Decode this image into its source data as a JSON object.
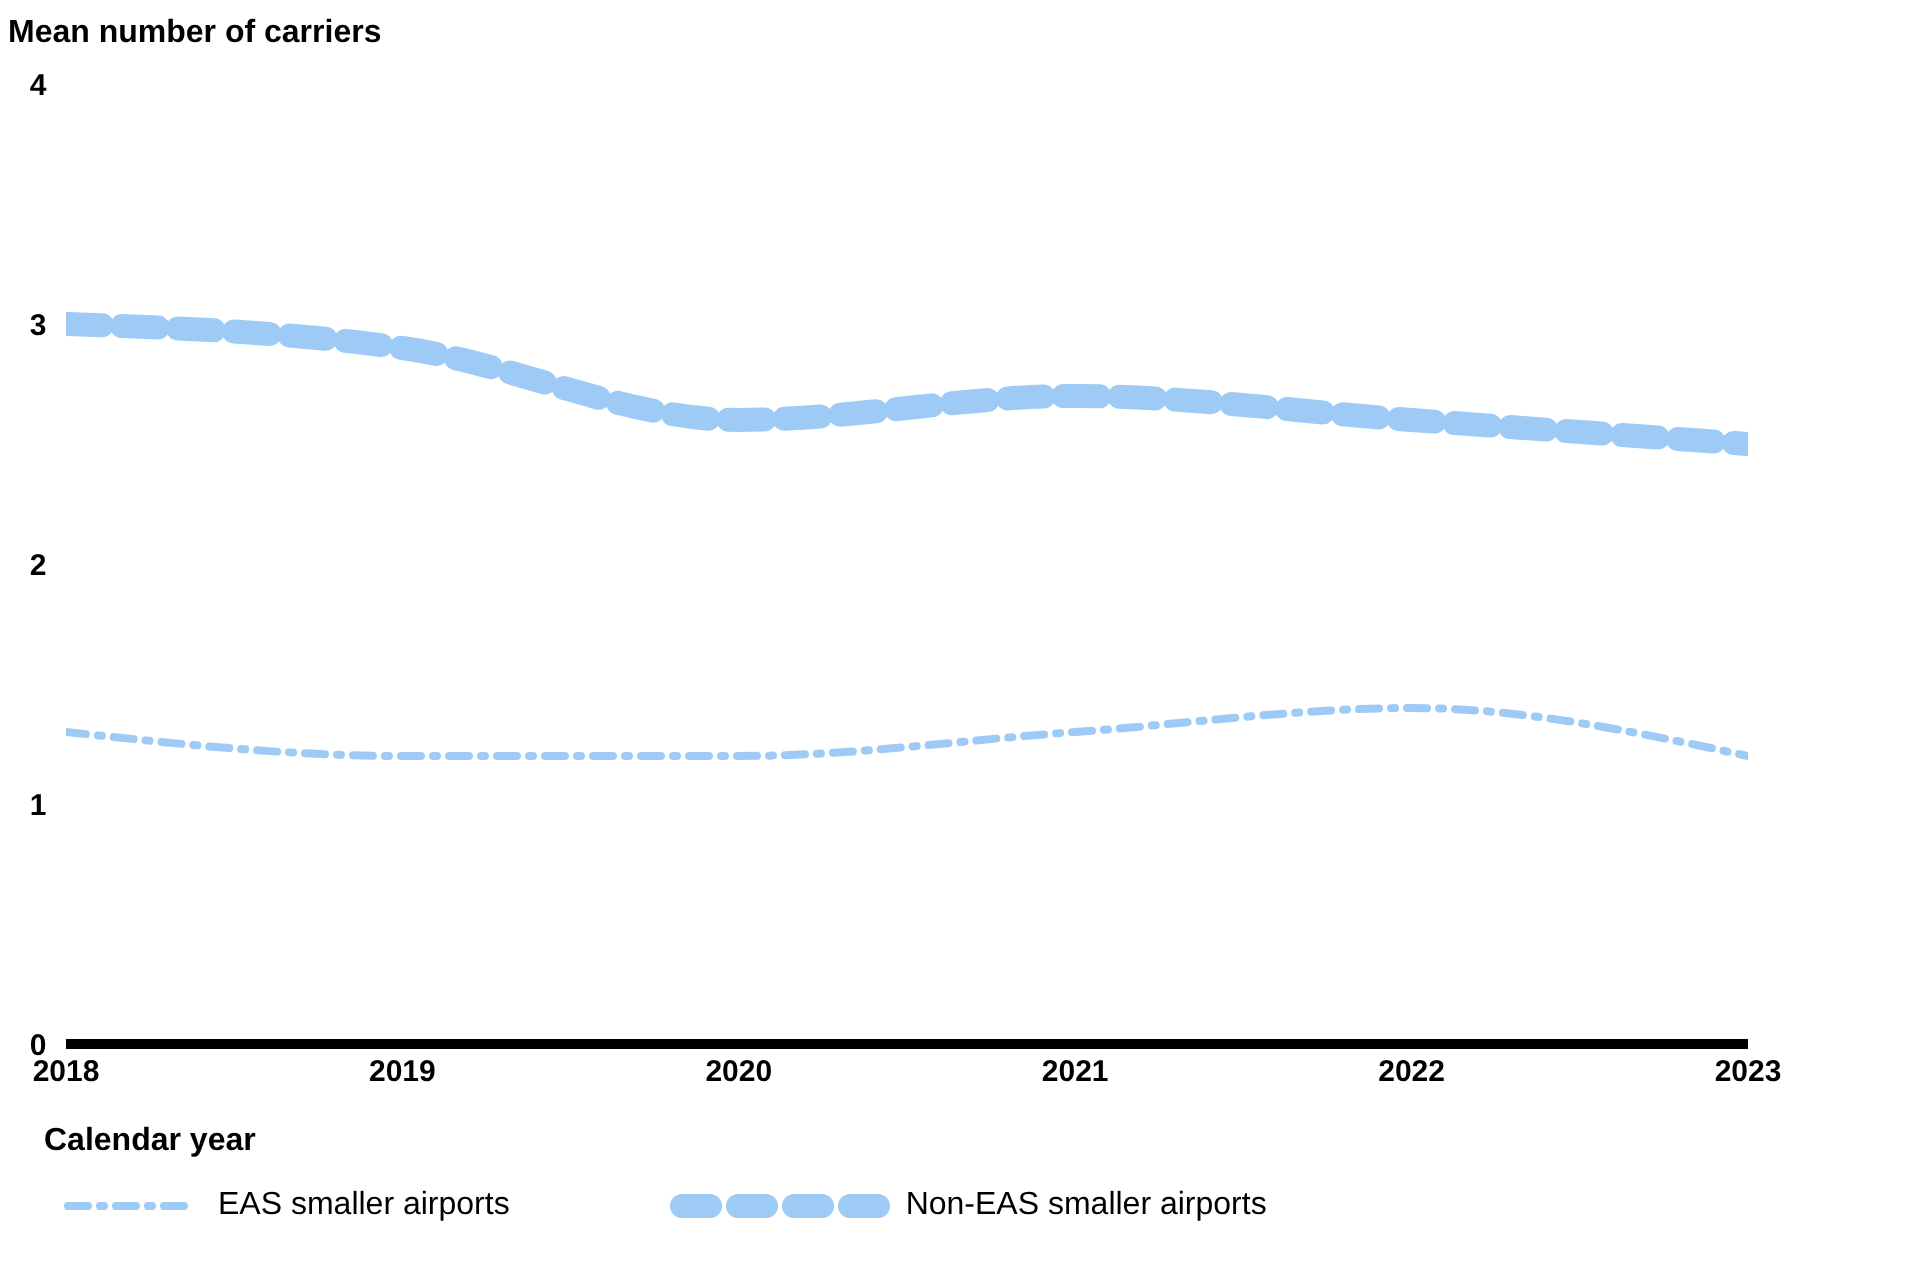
{
  "chart_data": {
    "type": "line",
    "ylabel": "Mean number of carriers",
    "xlabel": "Calendar year",
    "x": [
      2018,
      2019,
      2020,
      2021,
      2022,
      2023
    ],
    "xlim": [
      2018,
      2023
    ],
    "xticks": [
      2018,
      2019,
      2020,
      2021,
      2022,
      2023
    ],
    "ylim": [
      0,
      4
    ],
    "yticks": [
      0,
      1,
      2,
      3,
      4
    ],
    "grid": false,
    "legend": "bottom",
    "marker": "none",
    "series": [
      {
        "name": "EAS smaller airports",
        "color": "#9ecbf5",
        "line_style": "dashed",
        "values": [
          1.3,
          1.2,
          1.2,
          1.3,
          1.4,
          1.2
        ]
      },
      {
        "name": "Non-EAS smaller airports",
        "color": "#9ecbf5",
        "line_style": "dashed",
        "values": [
          3.0,
          2.9,
          2.6,
          2.7,
          2.6,
          2.5
        ]
      }
    ]
  }
}
